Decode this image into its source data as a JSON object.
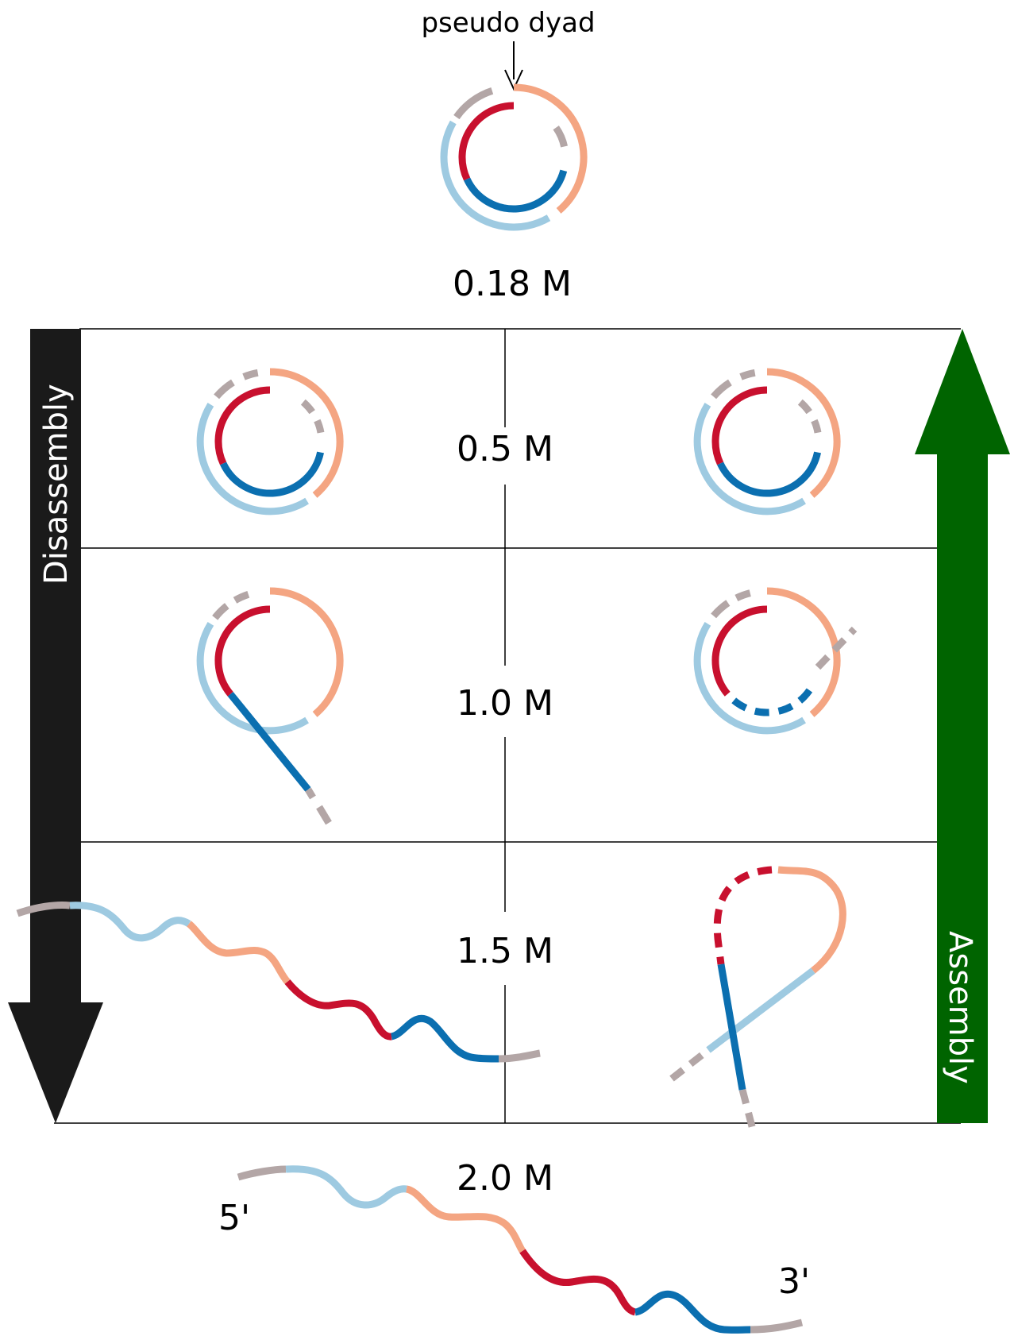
{
  "annotations": {
    "pseudo_dyad": "pseudo dyad",
    "five_prime": "5'",
    "three_prime": "3'"
  },
  "concentrations": {
    "c0": "0.18 M",
    "c1": "0.5 M",
    "c2": "1.0 M",
    "c3": "1.5 M",
    "c4": "2.0 M"
  },
  "arrows": {
    "disassembly": "Disassembly",
    "assembly": "Assembly"
  },
  "colors": {
    "red": "#c8102e",
    "salmon": "#f4a582",
    "dark_blue": "#0b6fb0",
    "light_blue": "#9ecae1",
    "grey": "#b3a6a6",
    "disassembly_arrow": "#1a1a1a",
    "assembly_arrow": "#006400"
  }
}
